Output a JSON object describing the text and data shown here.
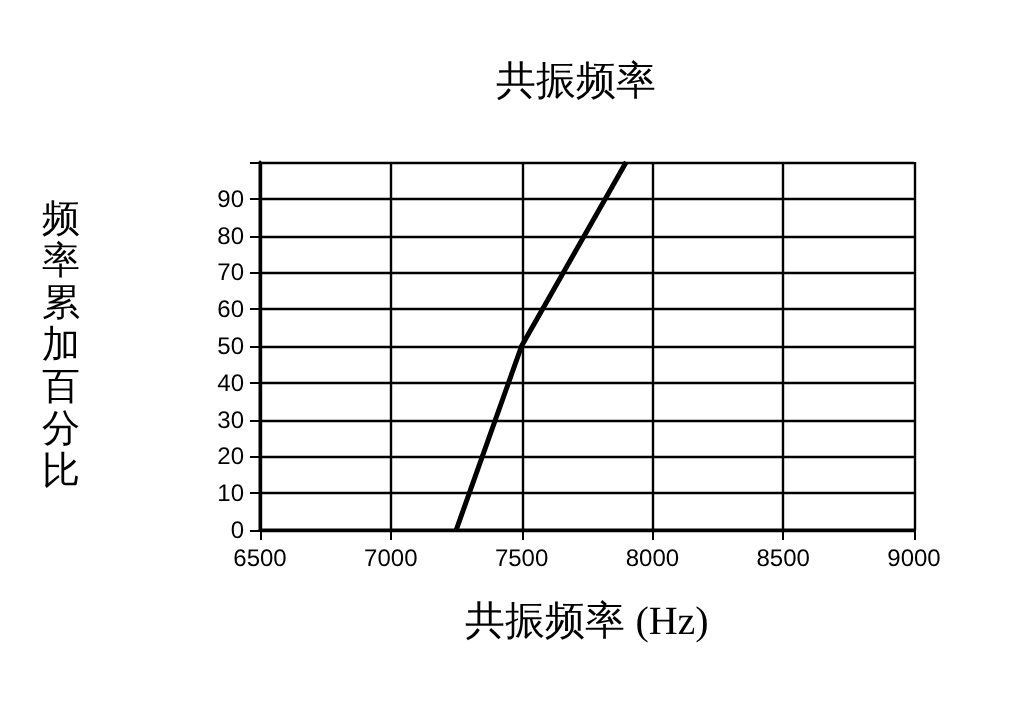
{
  "chart_data": {
    "type": "line",
    "title": "共振频率",
    "xlabel": "共振频率 (Hz)",
    "ylabel": "频率累加百分比",
    "series": [
      {
        "color": "#000000",
        "x": [
          7250,
          7500,
          7900
        ],
        "values": [
          0,
          50,
          100
        ]
      }
    ],
    "xlim": [
      6500,
      9000
    ],
    "xticks": [
      6500,
      7000,
      7500,
      8000,
      8500,
      9000
    ],
    "ylim": [
      0,
      100
    ],
    "yticks": [
      0,
      10,
      20,
      30,
      40,
      50,
      60,
      70,
      80,
      90,
      {
        "value": 100,
        "label": null
      }
    ],
    "grid": true,
    "marker": "none",
    "line_style": "solid"
  }
}
